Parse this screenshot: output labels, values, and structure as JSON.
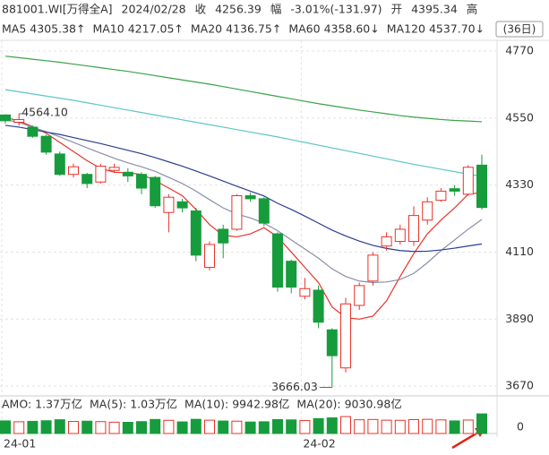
{
  "chart_data": {
    "type": "candlestick",
    "header": {
      "code": "881001.WI[万得全A]",
      "date": "2024/02/28",
      "close_label": "收",
      "close": "4256.39",
      "change_label": "幅",
      "change": "-3.01%(-131.97)",
      "open_label": "开",
      "open": "4395.34",
      "high_label": "高"
    },
    "period": "(36日)",
    "categories": [
      "24-01",
      null,
      null,
      null,
      null,
      null,
      null,
      null,
      null,
      null,
      null,
      null,
      null,
      null,
      null,
      null,
      null,
      null,
      null,
      null,
      null,
      null,
      "24-02",
      null,
      null,
      null,
      null,
      null,
      null,
      null,
      null,
      null,
      null,
      null,
      null,
      null
    ],
    "open": [
      4560,
      4536,
      4520,
      4490,
      4432,
      4365,
      4365,
      4340,
      4378,
      4372,
      4365,
      4355,
      4240,
      4275,
      4245,
      4060,
      4185,
      4185,
      4295,
      4285,
      4170,
      4080,
      3965,
      3985,
      3855,
      3730,
      3935,
      4015,
      4130,
      4145,
      4145,
      4215,
      4280,
      4318,
      4300,
      4395.34
    ],
    "high": [
      4562,
      4564.1,
      4525,
      4495,
      4440,
      4400,
      4370,
      4400,
      4400,
      4385,
      4372,
      4360,
      4300,
      4285,
      4255,
      4145,
      4200,
      4300,
      4305,
      4290,
      4175,
      4085,
      4025,
      4000,
      3860,
      3960,
      4010,
      4110,
      4175,
      4200,
      4260,
      4290,
      4320,
      4330,
      4395,
      4430
    ],
    "low": [
      4532,
      4525,
      4485,
      4430,
      4360,
      4355,
      4320,
      4335,
      4370,
      4340,
      4300,
      4255,
      4175,
      4240,
      4080,
      4050,
      4090,
      4180,
      4275,
      4195,
      3980,
      3975,
      3955,
      3860,
      3666.03,
      3715,
      3920,
      4000,
      4115,
      4135,
      4130,
      4200,
      4275,
      4295,
      4295,
      4250
    ],
    "close": [
      4541,
      4545,
      4490,
      4438,
      4365,
      4390,
      4335,
      4392,
      4388,
      4360,
      4320,
      4262,
      4290,
      4255,
      4100,
      4135,
      4140,
      4295,
      4285,
      4205,
      3995,
      3995,
      3990,
      3880,
      3770,
      3940,
      4000,
      4100,
      4160,
      4185,
      4230,
      4275,
      4310,
      4310,
      4388.36,
      4256.39
    ],
    "up_color": "#e8332a",
    "down_color": "#169c3c",
    "ylim": [
      3644,
      4805
    ],
    "yticks": [
      4770,
      4550,
      4330,
      4110,
      3890,
      3670
    ],
    "grid": true,
    "ma_series": [
      {
        "name": "MA5",
        "label": "4305.38↑",
        "color": "#e8332a",
        "values": [
          4552,
          4540,
          4522,
          4500,
          4470,
          4440,
          4410,
          4385,
          4372,
          4370,
          4365,
          4345,
          4320,
          4295,
          4250,
          4200,
          4165,
          4160,
          4170,
          4190,
          4160,
          4110,
          4060,
          4010,
          3930,
          3895,
          3890,
          3900,
          3950,
          4030,
          4105,
          4170,
          4215,
          4255,
          4300,
          4305.38
        ]
      },
      {
        "name": "MA10",
        "label": "4217.05↑",
        "color": "#8a8fa8",
        "values": [
          4545,
          4535,
          4520,
          4505,
          4488,
          4470,
          4452,
          4435,
          4418,
          4403,
          4390,
          4375,
          4355,
          4335,
          4310,
          4282,
          4255,
          4235,
          4222,
          4205,
          4180,
          4150,
          4120,
          4090,
          4055,
          4030,
          4015,
          4010,
          4012,
          4020,
          4040,
          4075,
          4115,
          4150,
          4185,
          4217.05
        ]
      },
      {
        "name": "MA20",
        "label": "4136.75↑",
        "color": "#2c3e8c",
        "values": [
          4526,
          4520,
          4512,
          4504,
          4496,
          4486,
          4476,
          4466,
          4455,
          4444,
          4433,
          4420,
          4406,
          4392,
          4376,
          4360,
          4343,
          4326,
          4310,
          4294,
          4270,
          4250,
          4228,
          4205,
          4182,
          4163,
          4146,
          4132,
          4122,
          4115,
          4112,
          4113,
          4117,
          4123,
          4130,
          4136.75
        ]
      },
      {
        "name": "MA60",
        "label": "4358.60↓",
        "color": "#5ec4c8",
        "values": [
          4643,
          4636,
          4629,
          4622,
          4615,
          4608,
          4600,
          4592,
          4584,
          4576,
          4568,
          4560,
          4552,
          4544,
          4536,
          4528,
          4520,
          4512,
          4504,
          4496,
          4488,
          4479,
          4470,
          4461,
          4452,
          4443,
          4434,
          4425,
          4416,
          4407,
          4398,
          4390,
          4382,
          4374,
          4366,
          4358.6
        ]
      },
      {
        "name": "MA120",
        "label": "4537.70↓",
        "color": "#3aa24a",
        "values": [
          4753,
          4748,
          4743,
          4738,
          4733,
          4727,
          4721,
          4715,
          4709,
          4703,
          4696,
          4689,
          4682,
          4675,
          4668,
          4661,
          4653,
          4645,
          4637,
          4629,
          4621,
          4613,
          4605,
          4597,
          4590,
          4583,
          4576,
          4570,
          4564,
          4558,
          4553,
          4549,
          4545,
          4542,
          4540,
          4537.7
        ]
      }
    ],
    "annotations": [
      {
        "value": 4564.1,
        "label": "4564.10"
      },
      {
        "value": 3666.03
      }
    ],
    "volume": {
      "legend": [
        {
          "label": "AMO: 1.37万亿",
          "color": "#333333"
        },
        {
          "label": "MA(5): 1.03万亿",
          "color": "#333333"
        },
        {
          "label": "MA(10): 9942.98亿",
          "color": "#e8332a"
        },
        {
          "label": "MA(20): 9030.98亿",
          "color": "#2c3e8c"
        }
      ],
      "values": [
        8800,
        8200,
        8500,
        8900,
        9600,
        8400,
        8600,
        8300,
        7900,
        7800,
        8300,
        9800,
        9200,
        8100,
        9900,
        9300,
        8700,
        8600,
        8000,
        8200,
        9700,
        9500,
        9100,
        10400,
        10900,
        11800,
        9600,
        9800,
        9300,
        9200,
        9700,
        9900,
        9500,
        8800,
        9400,
        13700
      ],
      "ylim": [
        0,
        15000
      ],
      "yticks": [
        0
      ]
    }
  }
}
